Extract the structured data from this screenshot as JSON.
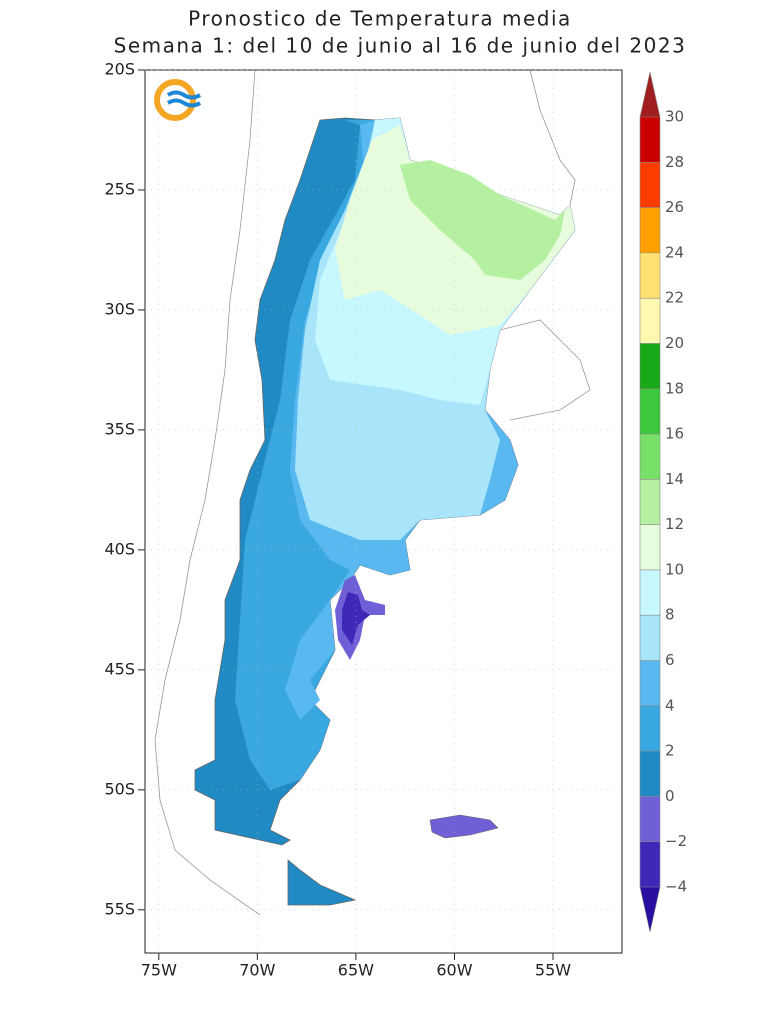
{
  "title": [
    "Pronostico de Temperatura media",
    "Semana 1: del 10 de junio al 16 de junio del 2023"
  ],
  "map": {
    "lon_range": [
      -75.7,
      -51.5
    ],
    "lat_range": [
      -20,
      -56.8
    ],
    "lon_ticks": [
      {
        "value": -75,
        "label": "75W"
      },
      {
        "value": -70,
        "label": "70W"
      },
      {
        "value": -65,
        "label": "65W"
      },
      {
        "value": -60,
        "label": "60W"
      },
      {
        "value": -55,
        "label": "55W"
      }
    ],
    "lat_ticks": [
      {
        "value": -20,
        "label": "20S"
      },
      {
        "value": -25,
        "label": "25S"
      },
      {
        "value": -30,
        "label": "30S"
      },
      {
        "value": -35,
        "label": "35S"
      },
      {
        "value": -40,
        "label": "40S"
      },
      {
        "value": -45,
        "label": "45S"
      },
      {
        "value": -50,
        "label": "50S"
      },
      {
        "value": -55,
        "label": "55S"
      }
    ]
  },
  "colorbar": {
    "ticks": [
      {
        "value": -4,
        "label": "−4"
      },
      {
        "value": -2,
        "label": "−2"
      },
      0,
      2,
      4,
      6,
      8,
      10,
      12,
      14,
      16,
      18,
      20,
      22,
      24,
      26,
      28,
      30
    ],
    "colors": [
      "#3f27b8",
      "#7060d8",
      "#1f8ac4",
      "#3aa8e0",
      "#5ab8f0",
      "#a8e4fa",
      "#c8f8ff",
      "#e6fcdc",
      "#b4f0a0",
      "#78e068",
      "#3cc83c",
      "#18a818",
      "#fff8b0",
      "#ffe070",
      "#ffa000",
      "#ff3c00",
      "#c80000"
    ],
    "under_color": "#2a0ea0",
    "over_color": "#a01e1e"
  }
}
